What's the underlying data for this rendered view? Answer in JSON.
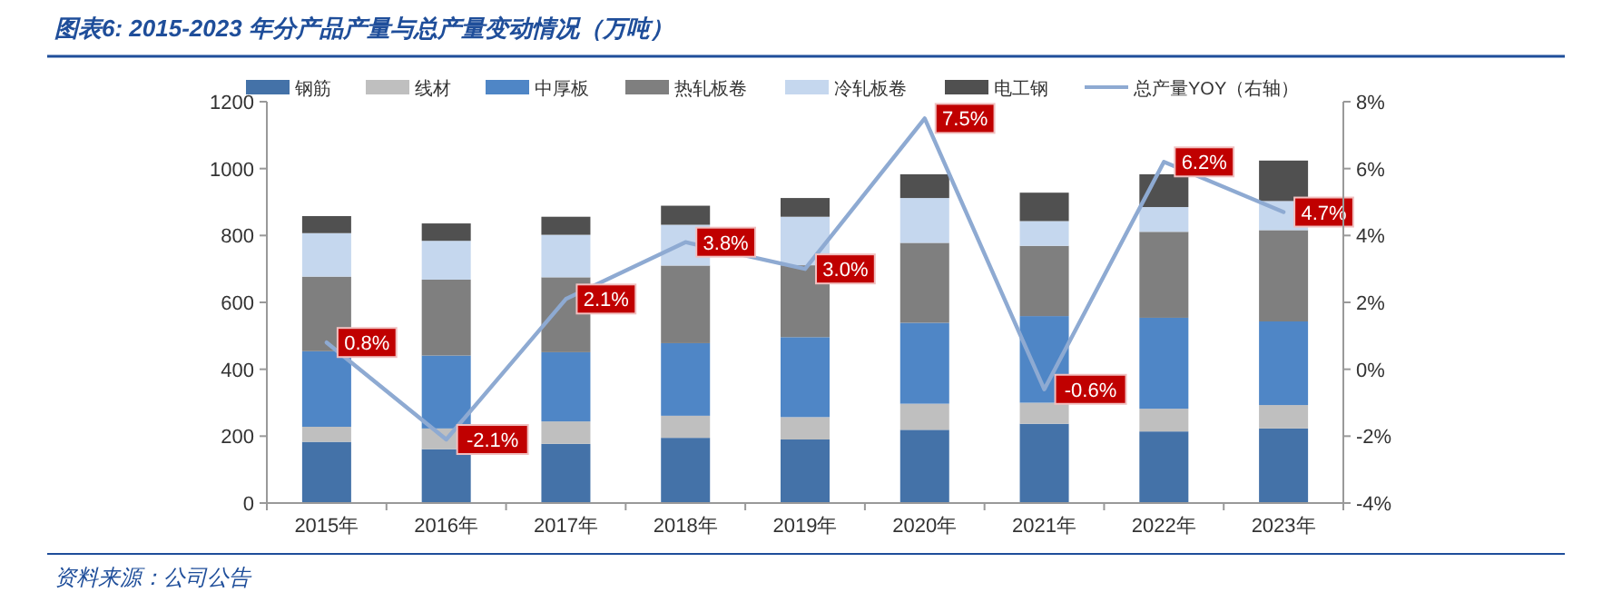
{
  "chart_data": {
    "type": "bar",
    "stacked": true,
    "title": "图表6:  2015-2023 年分产品产量与总产量变动情况（万吨）",
    "annotations": [
      "资料来源：公司公告"
    ],
    "categories": [
      "2015年",
      "2016年",
      "2017年",
      "2018年",
      "2019年",
      "2020年",
      "2021年",
      "2022年",
      "2023年"
    ],
    "series": [
      {
        "name": "钢筋",
        "color": "#4472a8",
        "values": [
          183,
          161,
          177,
          195,
          190,
          219,
          237,
          214,
          223
        ]
      },
      {
        "name": "线材",
        "color": "#bfbfbf",
        "values": [
          45,
          62,
          67,
          66,
          67,
          78,
          63,
          68,
          70
        ]
      },
      {
        "name": "中厚板",
        "color": "#4f86c6",
        "values": [
          226,
          218,
          207,
          217,
          239,
          242,
          259,
          272,
          250
        ]
      },
      {
        "name": "热轧板卷",
        "color": "#7f7f7f",
        "values": [
          223,
          227,
          224,
          232,
          215,
          239,
          210,
          257,
          273
        ]
      },
      {
        "name": "冷轧板卷",
        "color": "#c5d7ee",
        "values": [
          130,
          116,
          127,
          122,
          145,
          134,
          74,
          74,
          87
        ]
      },
      {
        "name": "电工钢",
        "color": "#505050",
        "values": [
          51,
          52,
          54,
          57,
          56,
          71,
          85,
          98,
          121
        ]
      },
      {
        "name": "总产量YOY（右轴）",
        "type": "line",
        "axis": "y2",
        "color": "#8eaad2",
        "values": [
          0.8,
          -2.1,
          2.1,
          3.8,
          3.0,
          7.5,
          -0.6,
          6.2,
          4.7
        ],
        "value_labels": [
          "0.8%",
          "-2.1%",
          "2.1%",
          "3.8%",
          "3.0%",
          "7.5%",
          "-0.6%",
          "6.2%",
          "4.7%"
        ]
      }
    ],
    "ylim": [
      0,
      1200
    ],
    "yticks": [
      0,
      200,
      400,
      600,
      800,
      1000,
      1200
    ],
    "y2lim": [
      -4,
      8
    ],
    "y2ticks": [
      {
        "value": -4,
        "label": "-4%"
      },
      {
        "value": -2,
        "label": "-2%"
      },
      {
        "value": 0,
        "label": "0%"
      },
      {
        "value": 2,
        "label": "2%"
      },
      {
        "value": 4,
        "label": "4%"
      },
      {
        "value": 6,
        "label": "6%"
      },
      {
        "value": 8,
        "label": "8%"
      }
    ],
    "legend": "top",
    "grid": false
  }
}
